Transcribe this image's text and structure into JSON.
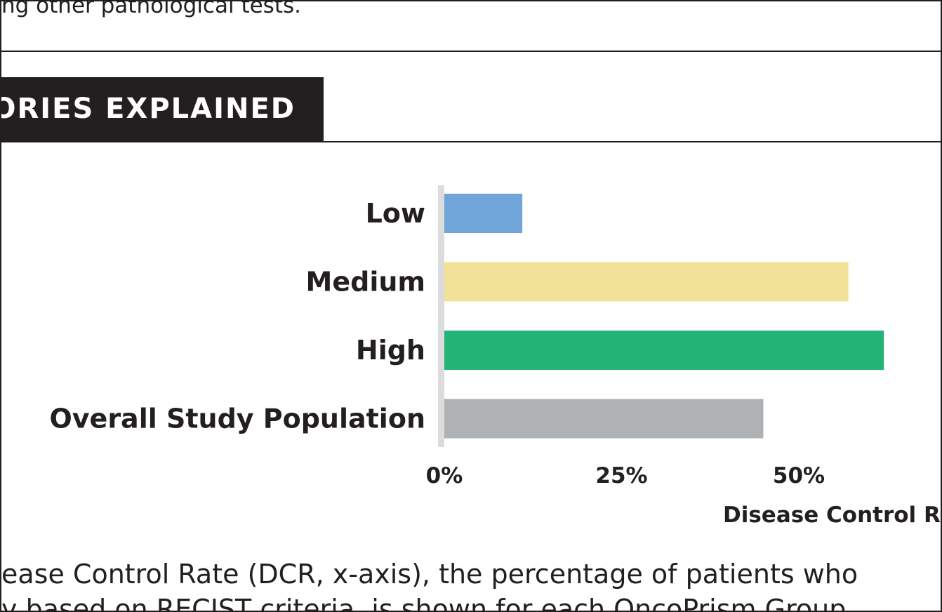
{
  "top_text": "ng other pathological tests.",
  "section_title": "ORIES EXPLAINED",
  "chart_data": {
    "type": "bar",
    "orientation": "horizontal",
    "categories": [
      "Low",
      "Medium",
      "High",
      "Overall Study Population"
    ],
    "values": [
      11,
      57,
      62,
      45
    ],
    "colors": [
      "#6fa5d8",
      "#f2e297",
      "#25b477",
      "#afb2b5"
    ],
    "x_ticks": [
      "0%",
      "25%",
      "50%"
    ],
    "x_tick_values": [
      0,
      25,
      50
    ],
    "xlabel": "Disease Control Ra",
    "xlim": [
      0,
      66
    ],
    "grid": false
  },
  "body_lines": [
    "ease Control Rate (DCR, x-axis), the percentage of patients who",
    "y based on RECIST criteria, is shown for each OncoPrism Group"
  ]
}
